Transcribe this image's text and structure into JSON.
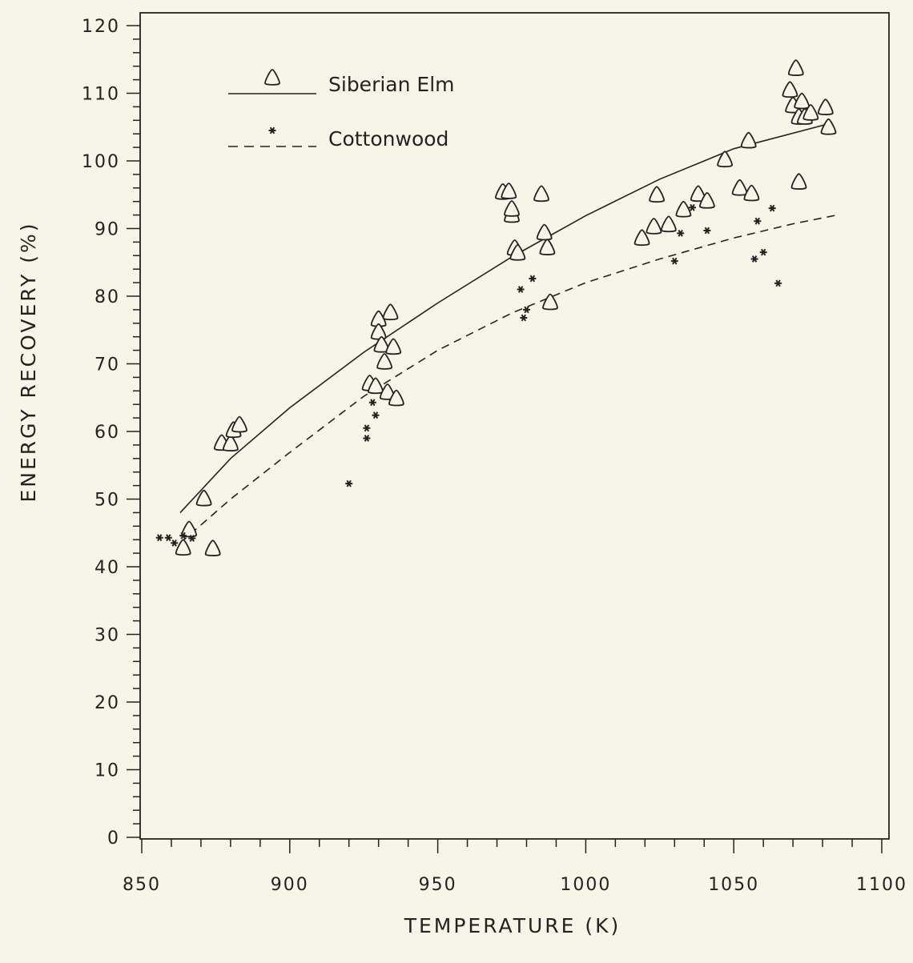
{
  "chart_data": {
    "type": "scatter",
    "xlabel": "TEMPERATURE (K)",
    "ylabel": "ENERGY RECOVERY (%)",
    "xlim": [
      850,
      1100
    ],
    "ylim": [
      0,
      120
    ],
    "xticks": [
      850,
      900,
      950,
      1000,
      1050,
      1100
    ],
    "yticks": [
      0,
      10,
      20,
      30,
      40,
      50,
      60,
      70,
      80,
      90,
      100,
      110,
      120
    ],
    "xtick_labels": [
      "850",
      "900",
      "950",
      "1000",
      "1050",
      "1100"
    ],
    "ytick_labels": [
      "0",
      "10",
      "20",
      "30",
      "40",
      "50",
      "60",
      "70",
      "80",
      "90",
      "100",
      "110",
      "120"
    ],
    "grid": false,
    "legend_position": "top-left",
    "series": [
      {
        "name": "Siberian Elm",
        "marker": "triangle",
        "line_style": "solid",
        "color": "#222222",
        "points": [
          [
            864,
            42.8
          ],
          [
            866,
            45.5
          ],
          [
            871,
            50.1
          ],
          [
            874,
            42.7
          ],
          [
            877,
            58.3
          ],
          [
            880,
            58.2
          ],
          [
            881,
            60.2
          ],
          [
            883,
            61.0
          ],
          [
            927,
            67.1
          ],
          [
            929,
            66.7
          ],
          [
            930,
            76.6
          ],
          [
            930,
            74.7
          ],
          [
            931,
            72.8
          ],
          [
            932,
            70.3
          ],
          [
            933,
            65.8
          ],
          [
            934,
            77.6
          ],
          [
            935,
            72.5
          ],
          [
            936,
            64.9
          ],
          [
            972,
            95.4
          ],
          [
            974,
            95.5
          ],
          [
            975,
            92.0
          ],
          [
            975,
            92.9
          ],
          [
            976,
            87.1
          ],
          [
            977,
            86.4
          ],
          [
            985,
            95.1
          ],
          [
            986,
            89.4
          ],
          [
            987,
            87.2
          ],
          [
            988,
            79.1
          ],
          [
            1019,
            88.6
          ],
          [
            1023,
            90.3
          ],
          [
            1024,
            95.0
          ],
          [
            1028,
            90.6
          ],
          [
            1033,
            92.8
          ],
          [
            1038,
            95.1
          ],
          [
            1041,
            94.1
          ],
          [
            1047,
            100.2
          ],
          [
            1052,
            96.0
          ],
          [
            1055,
            103.0
          ],
          [
            1056,
            95.2
          ],
          [
            1069,
            110.5
          ],
          [
            1070,
            108.2
          ],
          [
            1071,
            113.7
          ],
          [
            1072,
            106.5
          ],
          [
            1072,
            96.9
          ],
          [
            1073,
            108.8
          ],
          [
            1074,
            106.5
          ],
          [
            1076,
            107.1
          ],
          [
            1081,
            107.9
          ],
          [
            1082,
            105.0
          ]
        ],
        "fit": [
          [
            863,
            48.0
          ],
          [
            880,
            56.0
          ],
          [
            900,
            63.5
          ],
          [
            925,
            71.7
          ],
          [
            950,
            79.0
          ],
          [
            975,
            85.8
          ],
          [
            1000,
            91.9
          ],
          [
            1025,
            97.3
          ],
          [
            1050,
            101.8
          ],
          [
            1083,
            105.6
          ]
        ]
      },
      {
        "name": "Cottonwood",
        "marker": "asterisk",
        "line_style": "dashed",
        "color": "#222222",
        "points": [
          [
            856,
            44.3
          ],
          [
            859,
            44.3
          ],
          [
            861,
            43.5
          ],
          [
            864,
            44.6
          ],
          [
            867,
            44.2
          ],
          [
            920,
            52.3
          ],
          [
            926,
            60.5
          ],
          [
            926,
            59.0
          ],
          [
            928,
            64.3
          ],
          [
            929,
            62.4
          ],
          [
            978,
            81.0
          ],
          [
            979,
            76.8
          ],
          [
            980,
            78.0
          ],
          [
            982,
            82.6
          ],
          [
            1030,
            85.2
          ],
          [
            1032,
            89.3
          ],
          [
            1036,
            93.1
          ],
          [
            1041,
            89.7
          ],
          [
            1057,
            85.5
          ],
          [
            1058,
            91.1
          ],
          [
            1060,
            86.5
          ],
          [
            1063,
            93.0
          ],
          [
            1065,
            81.9
          ]
        ],
        "fit": [
          [
            863,
            43.5
          ],
          [
            880,
            50.0
          ],
          [
            900,
            56.9
          ],
          [
            925,
            65.2
          ],
          [
            950,
            72.0
          ],
          [
            975,
            77.5
          ],
          [
            1000,
            82.0
          ],
          [
            1025,
            85.5
          ],
          [
            1050,
            88.6
          ],
          [
            1070,
            90.7
          ],
          [
            1085,
            92.0
          ]
        ]
      }
    ]
  }
}
